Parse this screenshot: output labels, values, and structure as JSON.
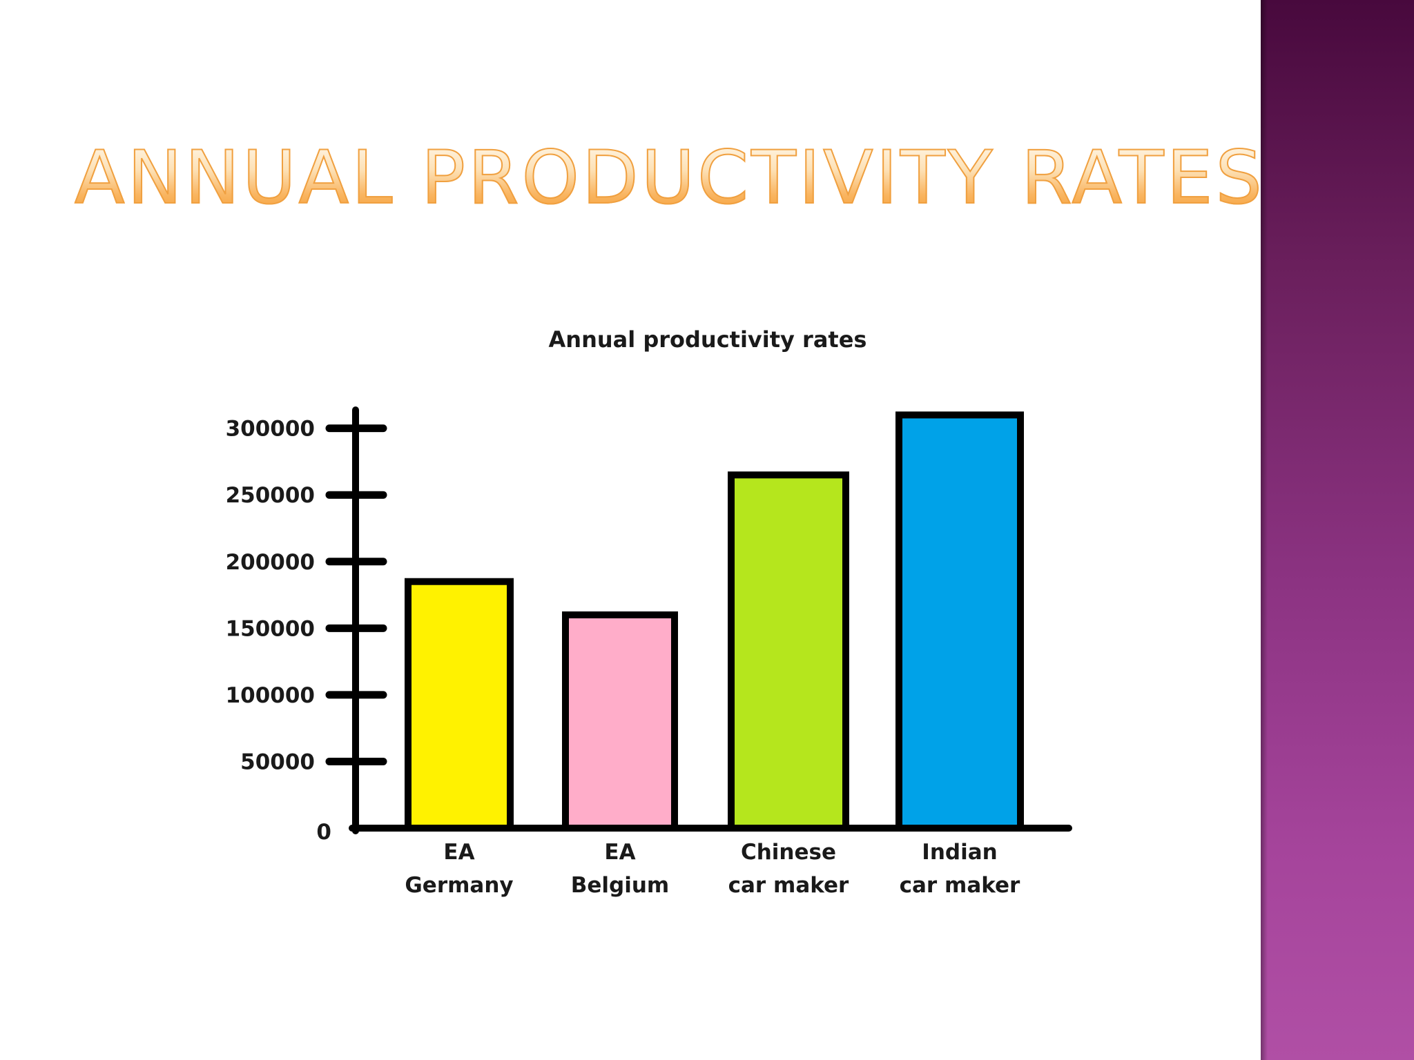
{
  "slide": {
    "title": "Annual Productivity Rates",
    "side_band_color": "#8c3382"
  },
  "chart_data": {
    "type": "bar",
    "title": "Annual productivity rates",
    "categories": [
      [
        "EA",
        "Germany"
      ],
      [
        "EA",
        "Belgium"
      ],
      [
        "Chinese",
        "car maker"
      ],
      [
        "Indian",
        "car maker"
      ]
    ],
    "values": [
      185000,
      160000,
      265000,
      310000
    ],
    "colors": [
      "#fff200",
      "#ffadc9",
      "#b5e61d",
      "#00a2e8"
    ],
    "ylim": [
      0,
      320000
    ],
    "yticks": [
      {
        "value": 300000,
        "label": "300000"
      },
      {
        "value": 250000,
        "label": "250000"
      },
      {
        "value": 200000,
        "label": "200000"
      },
      {
        "value": 150000,
        "label": "150000"
      },
      {
        "value": 100000,
        "label": "100000"
      },
      {
        "value": 50000,
        "label": "50000"
      },
      {
        "value": 0,
        "label": "0"
      }
    ],
    "xlabel": "",
    "ylabel": "",
    "legend": "none"
  }
}
